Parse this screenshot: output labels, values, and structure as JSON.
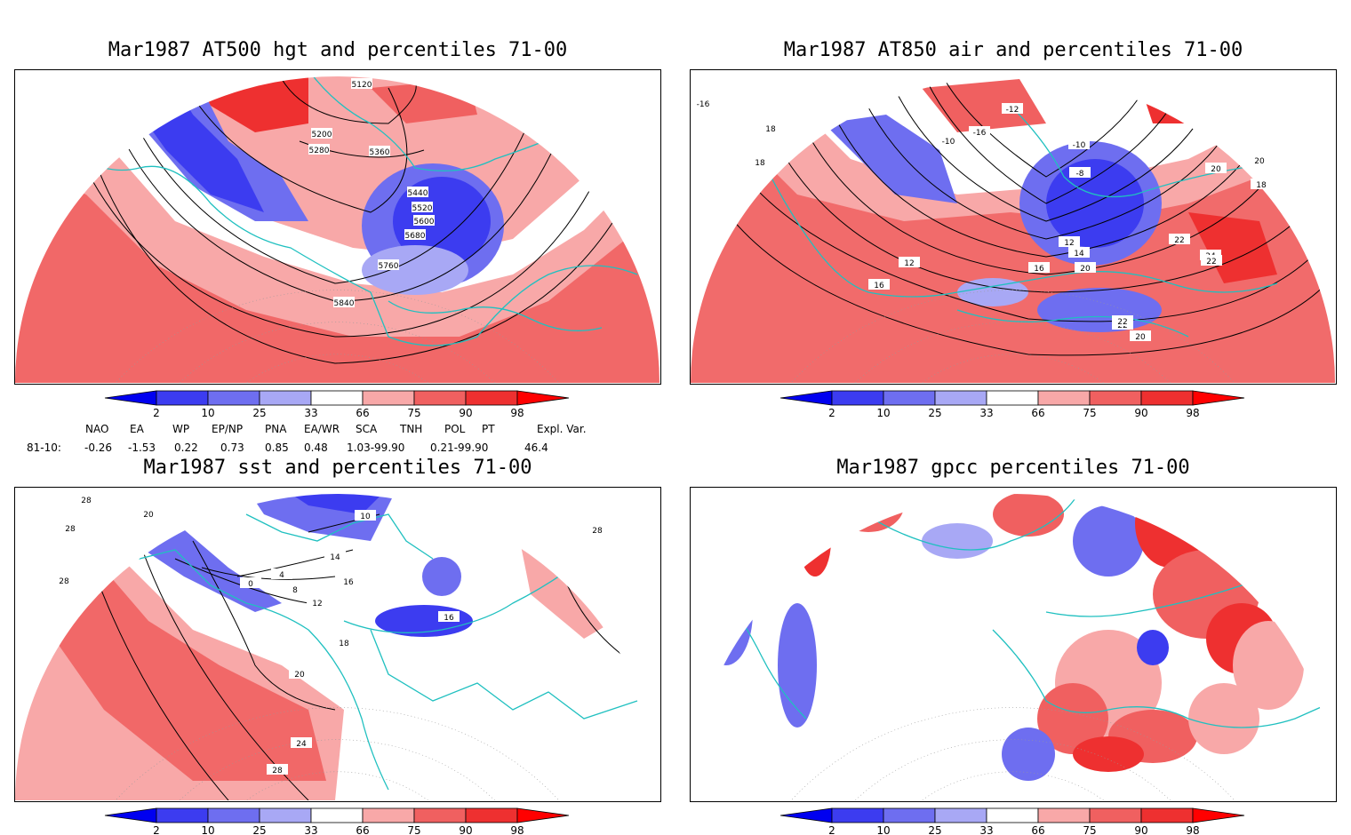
{
  "panels": [
    {
      "title": "Mar1987 AT500 hgt and percentiles 71-00",
      "contour_labels": [
        "5120",
        "5200",
        "5280",
        "5360",
        "5440",
        "5520",
        "5600",
        "5680",
        "5760",
        "5840"
      ]
    },
    {
      "title": "Mar1987 AT850 air and percentiles 71-00",
      "contour_labels": [
        "-16",
        "18",
        "18",
        "-12",
        "-10",
        "-16",
        "-10",
        "-8",
        "12",
        "14",
        "16",
        "20",
        "22",
        "24",
        "22",
        "20",
        "12",
        "16",
        "20",
        "18",
        "20",
        "22",
        "22"
      ]
    },
    {
      "title": "Mar1987 sst and percentiles 71-00",
      "contour_labels": [
        "28",
        "28",
        "28",
        "20",
        "0",
        "4",
        "8",
        "12",
        "14",
        "10",
        "16",
        "18",
        "20",
        "24",
        "28",
        "28",
        "16"
      ]
    },
    {
      "title": "Mar1987 gpcc percentiles 71-00",
      "contour_labels": []
    }
  ],
  "colorbar": {
    "ticks": [
      "2",
      "10",
      "25",
      "33",
      "66",
      "75",
      "90",
      "98"
    ],
    "colors": {
      "below2": "#0000f0",
      "b2_10": "#3c3cf0",
      "b10_25": "#6e6ef0",
      "b25_33": "#a8a8f5",
      "mid": "#ffffff",
      "a66_75": "#f8a8a8",
      "a75_90": "#f06060",
      "a90_98": "#ee3030",
      "above98": "#ff0000"
    }
  },
  "indices": {
    "headers": [
      "NAO",
      "EA",
      "WP",
      "EP/NP",
      "PNA",
      "EA/WR",
      "SCA",
      "TNH",
      "POL",
      "PT",
      "Expl. Var."
    ],
    "row_label": "81-10:",
    "values": [
      "-0.26",
      "-1.53",
      "0.22",
      "0.73",
      "0.85",
      "0.48",
      "1.03-99.90",
      "0.21-99.90",
      "46.4"
    ]
  },
  "colors": {
    "coast": "#20c0c0",
    "contour": "#000000",
    "border": "#000000"
  }
}
